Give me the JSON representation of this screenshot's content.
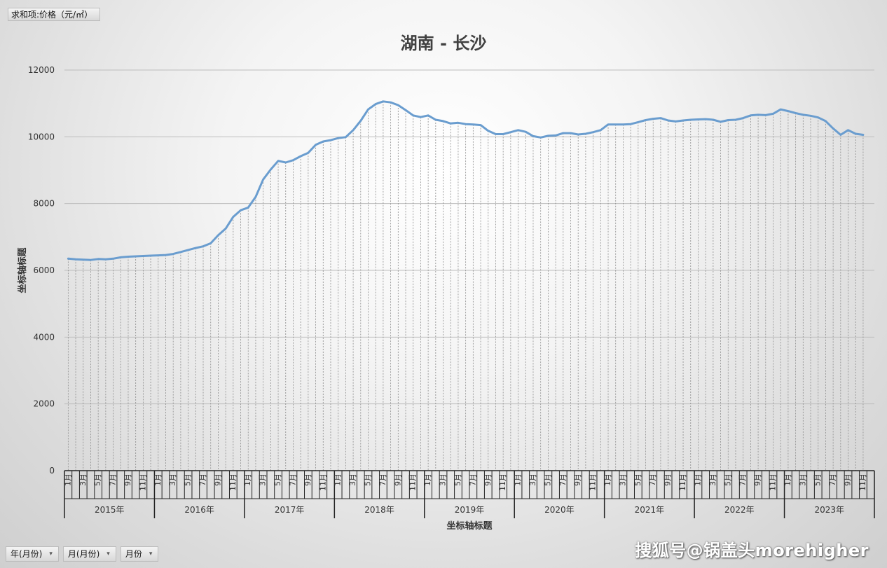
{
  "field_button": "求和项:价格（元/㎡）",
  "bottom_fields": [
    "年(月份)",
    "月(月份)",
    "月份"
  ],
  "watermark": "搜狐号@锅盖头morehigher",
  "chart_data": {
    "type": "line",
    "title": "湖南 - 长沙",
    "xlabel": "坐标轴标题",
    "ylabel": "坐标轴标题",
    "ylim": [
      0,
      12000
    ],
    "yticks": [
      0,
      2000,
      4000,
      6000,
      8000,
      10000,
      12000
    ],
    "grid": true,
    "years": [
      "2015年",
      "2016年",
      "2017年",
      "2018年",
      "2019年",
      "2020年",
      "2021年",
      "2022年",
      "2023年"
    ],
    "month_labels": [
      "1月",
      "",
      "3月",
      "",
      "5月",
      "",
      "7月",
      "",
      "9月",
      "",
      "11月",
      ""
    ],
    "color": "#6a9dcf",
    "series": [
      {
        "values": [
          6350,
          6330,
          6320,
          6310,
          6340,
          6330,
          6350,
          6390,
          6410,
          6420,
          6430,
          6440,
          6450,
          6460,
          6490,
          6550,
          6610,
          6670,
          6720,
          6810,
          7050,
          7250,
          7600,
          7800,
          7880,
          8200,
          8720,
          9020,
          9280,
          9230,
          9300,
          9420,
          9520,
          9760,
          9860,
          9900,
          9960,
          9990,
          10200,
          10480,
          10820,
          10980,
          11060,
          11030,
          10950,
          10800,
          10640,
          10590,
          10640,
          10510,
          10470,
          10400,
          10420,
          10380,
          10370,
          10350,
          10180,
          10080,
          10080,
          10140,
          10200,
          10150,
          10020,
          9980,
          10030,
          10040,
          10110,
          10110,
          10070,
          10090,
          10140,
          10200,
          10370,
          10370,
          10370,
          10380,
          10440,
          10500,
          10540,
          10560,
          10490,
          10460,
          10490,
          10510,
          10520,
          10530,
          10510,
          10450,
          10500,
          10510,
          10560,
          10640,
          10660,
          10650,
          10690,
          10820,
          10770,
          10710,
          10660,
          10630,
          10580,
          10470,
          10250,
          10060,
          10200,
          10090,
          10060
        ]
      }
    ]
  }
}
